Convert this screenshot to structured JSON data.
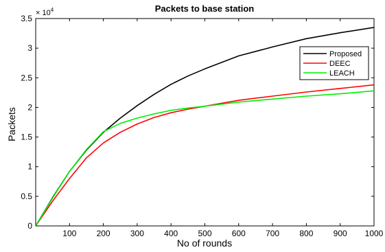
{
  "chart_data": {
    "type": "line",
    "title": "Packets to base station",
    "xlabel": "No of rounds",
    "ylabel": "Packets",
    "y_multiplier": {
      "base": "× 10",
      "exponent": "4"
    },
    "xlim": [
      0,
      1000
    ],
    "ylim": [
      0,
      35000
    ],
    "xticks": [
      100,
      200,
      300,
      400,
      500,
      600,
      700,
      800,
      900,
      1000
    ],
    "yticks": [
      0,
      5000,
      10000,
      15000,
      20000,
      25000,
      30000,
      35000
    ],
    "ytick_labels": [
      "0",
      "0.5",
      "1",
      "1.5",
      "2",
      "2.5",
      "3",
      "3.5"
    ],
    "grid": false,
    "legend_position": "top-right",
    "series": [
      {
        "name": "Proposed",
        "color": "#000000",
        "x": [
          0,
          50,
          100,
          150,
          200,
          250,
          300,
          350,
          400,
          450,
          500,
          600,
          700,
          800,
          900,
          1000
        ],
        "y": [
          0,
          4800,
          9200,
          12800,
          15800,
          18200,
          20300,
          22200,
          23900,
          25300,
          26500,
          28700,
          30200,
          31600,
          32600,
          33500
        ]
      },
      {
        "name": "DEEC",
        "color": "#ff0000",
        "x": [
          0,
          50,
          100,
          150,
          200,
          250,
          300,
          350,
          400,
          450,
          500,
          600,
          700,
          800,
          900,
          1000
        ],
        "y": [
          0,
          4200,
          8000,
          11500,
          14000,
          15800,
          17200,
          18300,
          19100,
          19700,
          20200,
          21200,
          21900,
          22600,
          23200,
          23800
        ]
      },
      {
        "name": "LEACH",
        "color": "#00ee00",
        "x": [
          0,
          50,
          100,
          150,
          200,
          250,
          300,
          350,
          400,
          450,
          500,
          600,
          700,
          800,
          900,
          1000
        ],
        "y": [
          0,
          4700,
          9200,
          12900,
          15900,
          17300,
          18200,
          18900,
          19500,
          19900,
          20200,
          20900,
          21400,
          21900,
          22300,
          22800
        ]
      }
    ]
  }
}
